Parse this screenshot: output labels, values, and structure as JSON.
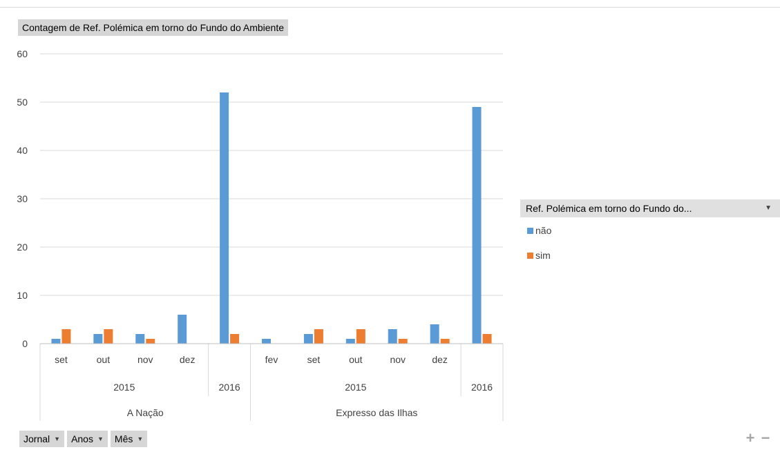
{
  "chart_data": {
    "type": "bar",
    "title": "Contagem de Ref. Polémica em torno do Fundo do Ambiente",
    "ylim": [
      0,
      60
    ],
    "yticks": [
      0,
      10,
      20,
      30,
      40,
      50,
      60
    ],
    "grid": true,
    "legend_position": "right",
    "legend_title": "Ref. Polémica em torno do Fundo do...",
    "groups": [
      {
        "jornal": "A Nação",
        "anos": [
          {
            "ano": "2015",
            "meses": [
              "set",
              "out",
              "nov",
              "dez"
            ]
          },
          {
            "ano": "2016",
            "meses": [
              ""
            ]
          }
        ]
      },
      {
        "jornal": "Expresso das Ilhas",
        "anos": [
          {
            "ano": "2015",
            "meses": [
              "fev",
              "set",
              "out",
              "nov",
              "dez"
            ]
          },
          {
            "ano": "2016",
            "meses": [
              ""
            ]
          }
        ]
      }
    ],
    "series": [
      {
        "name": "não",
        "color": "#5b9bd5",
        "values": [
          1,
          2,
          2,
          6,
          52,
          1,
          2,
          1,
          3,
          4,
          49
        ]
      },
      {
        "name": "sim",
        "color": "#ed7d31",
        "values": [
          3,
          3,
          1,
          0,
          2,
          0,
          3,
          3,
          1,
          1,
          2
        ]
      }
    ]
  },
  "field_buttons": [
    {
      "label": "Jornal"
    },
    {
      "label": "Anos"
    },
    {
      "label": "Mês"
    }
  ],
  "zoom": {
    "plus": "+",
    "minus": "−"
  }
}
